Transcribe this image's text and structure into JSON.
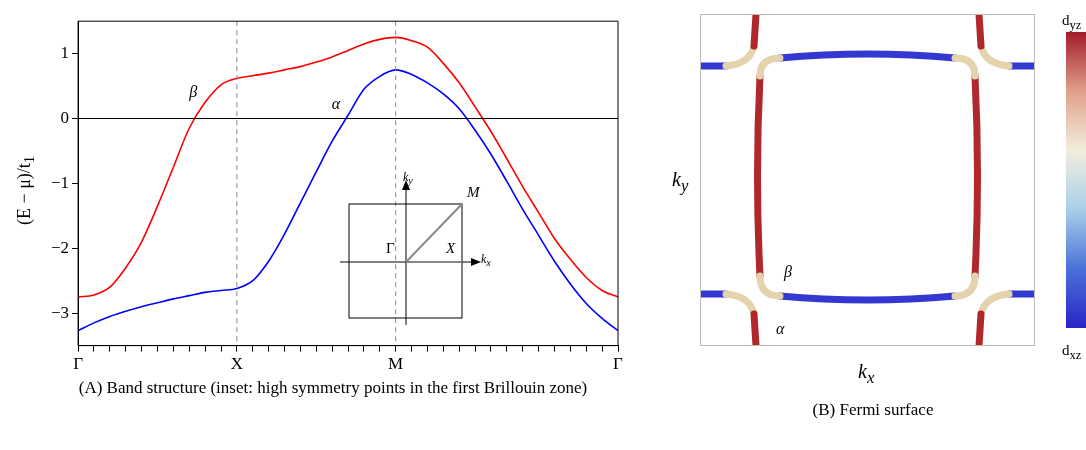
{
  "chart_data": [
    {
      "type": "line",
      "title": "(A) Band structure (inset: high symmetry points in the first Brillouin zone)",
      "ylabel": "(E − μ)/t$_{1}$",
      "categories": [
        "Γ",
        null,
        null,
        null,
        null,
        null,
        null,
        null,
        null,
        null,
        "X",
        null,
        null,
        null,
        null,
        null,
        null,
        null,
        null,
        null,
        "M",
        null,
        null,
        null,
        null,
        null,
        null,
        null,
        null,
        null,
        null,
        null,
        null,
        null,
        "Γ"
      ],
      "ylim": [
        -3.5,
        1.5
      ],
      "yticks": [
        -3,
        -2,
        -1,
        0,
        1
      ],
      "grid": false,
      "legend": false,
      "series": [
        {
          "name": "β",
          "color": "#ff0000",
          "values": [
            -2.75,
            -2.72,
            -2.6,
            -2.3,
            -1.9,
            -1.35,
            -0.75,
            -0.15,
            0.25,
            0.52,
            0.62,
            0.66,
            0.7,
            0.75,
            0.8,
            0.87,
            0.95,
            1.05,
            1.15,
            1.22,
            1.25,
            1.2,
            1.1,
            0.85,
            0.55,
            0.18,
            -0.2,
            -0.62,
            -1.05,
            -1.45,
            -1.85,
            -2.17,
            -2.45,
            -2.65,
            -2.75
          ]
        },
        {
          "name": "α",
          "color": "#0000ff",
          "values": [
            -3.27,
            -3.15,
            -3.05,
            -2.97,
            -2.9,
            -2.84,
            -2.78,
            -2.73,
            -2.68,
            -2.65,
            -2.62,
            -2.5,
            -2.2,
            -1.78,
            -1.3,
            -0.82,
            -0.35,
            0.05,
            0.45,
            0.65,
            0.75,
            0.68,
            0.55,
            0.38,
            0.15,
            -0.18,
            -0.55,
            -0.97,
            -1.4,
            -1.8,
            -2.2,
            -2.55,
            -2.85,
            -3.08,
            -3.27
          ]
        }
      ],
      "ref_lines": [
        {
          "axis": "y",
          "value": 0,
          "color": "#000000"
        },
        {
          "axis": "x",
          "value": "X",
          "color": "#888888",
          "line_style": "dashed"
        },
        {
          "axis": "x",
          "value": "M",
          "color": "#888888",
          "line_style": "dashed"
        }
      ],
      "annotations": [
        "k$_{y}$",
        "M",
        "Γ",
        "X",
        "k$_{x}$"
      ]
    },
    {
      "type": "other",
      "title": "(B) Fermi surface",
      "xlabel": "k$_{x}$",
      "ylabel": "k$_{y}$",
      "annotations": [
        "β",
        "α",
        "d$_{yz}$",
        "d$_{xz}$"
      ]
    }
  ]
}
